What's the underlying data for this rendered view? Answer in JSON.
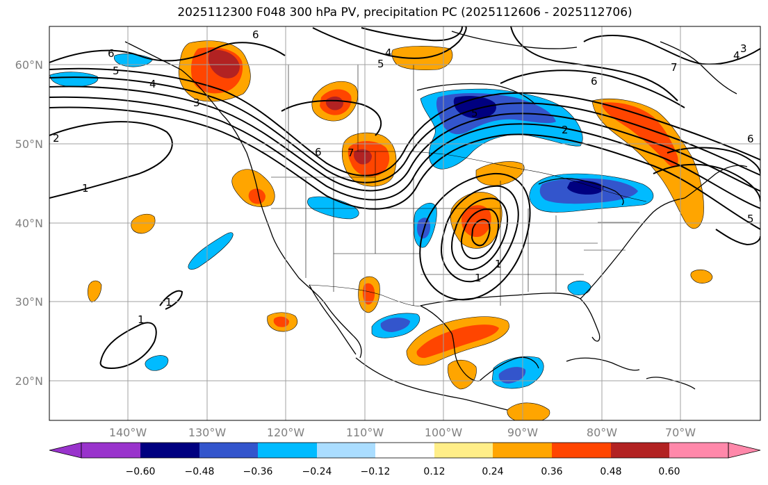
{
  "title": "2025112300 F048 300 hPa PV, precipitation PC (2025112606 - 2025112706)",
  "lat_labels": [
    "60°N",
    "50°N",
    "40°N",
    "30°N",
    "20°N"
  ],
  "lon_labels": [
    "140°W",
    "130°W",
    "120°W",
    "110°W",
    "100°W",
    "90°W",
    "80°W",
    "70°W"
  ],
  "contour_labels": [
    "6",
    "6",
    "5",
    "5",
    "4",
    "6",
    "4",
    "3",
    "2",
    "1",
    "7",
    "6",
    "5",
    "2",
    "1",
    "1",
    "1",
    "1",
    "4",
    "3",
    "7",
    "6",
    "5"
  ],
  "colorbar": {
    "ticks": [
      "−0.60",
      "−0.48",
      "−0.36",
      "−0.24",
      "−0.12",
      "0.12",
      "0.24",
      "0.36",
      "0.48",
      "0.60"
    ],
    "colors": [
      "#9933cc",
      "#000080",
      "#3355cc",
      "#00bbff",
      "#aaddff",
      "#ffffff",
      "#ffee88",
      "#ffa500",
      "#ff4500",
      "#b22222",
      "#ff88aa"
    ]
  },
  "colors": {
    "strong_negative": "#3355cc",
    "negative": "#00bbff",
    "positive": "#ffa500",
    "strong_positive": "#ff4500",
    "max_positive": "#b22222",
    "darkest_negative": "#000080"
  }
}
